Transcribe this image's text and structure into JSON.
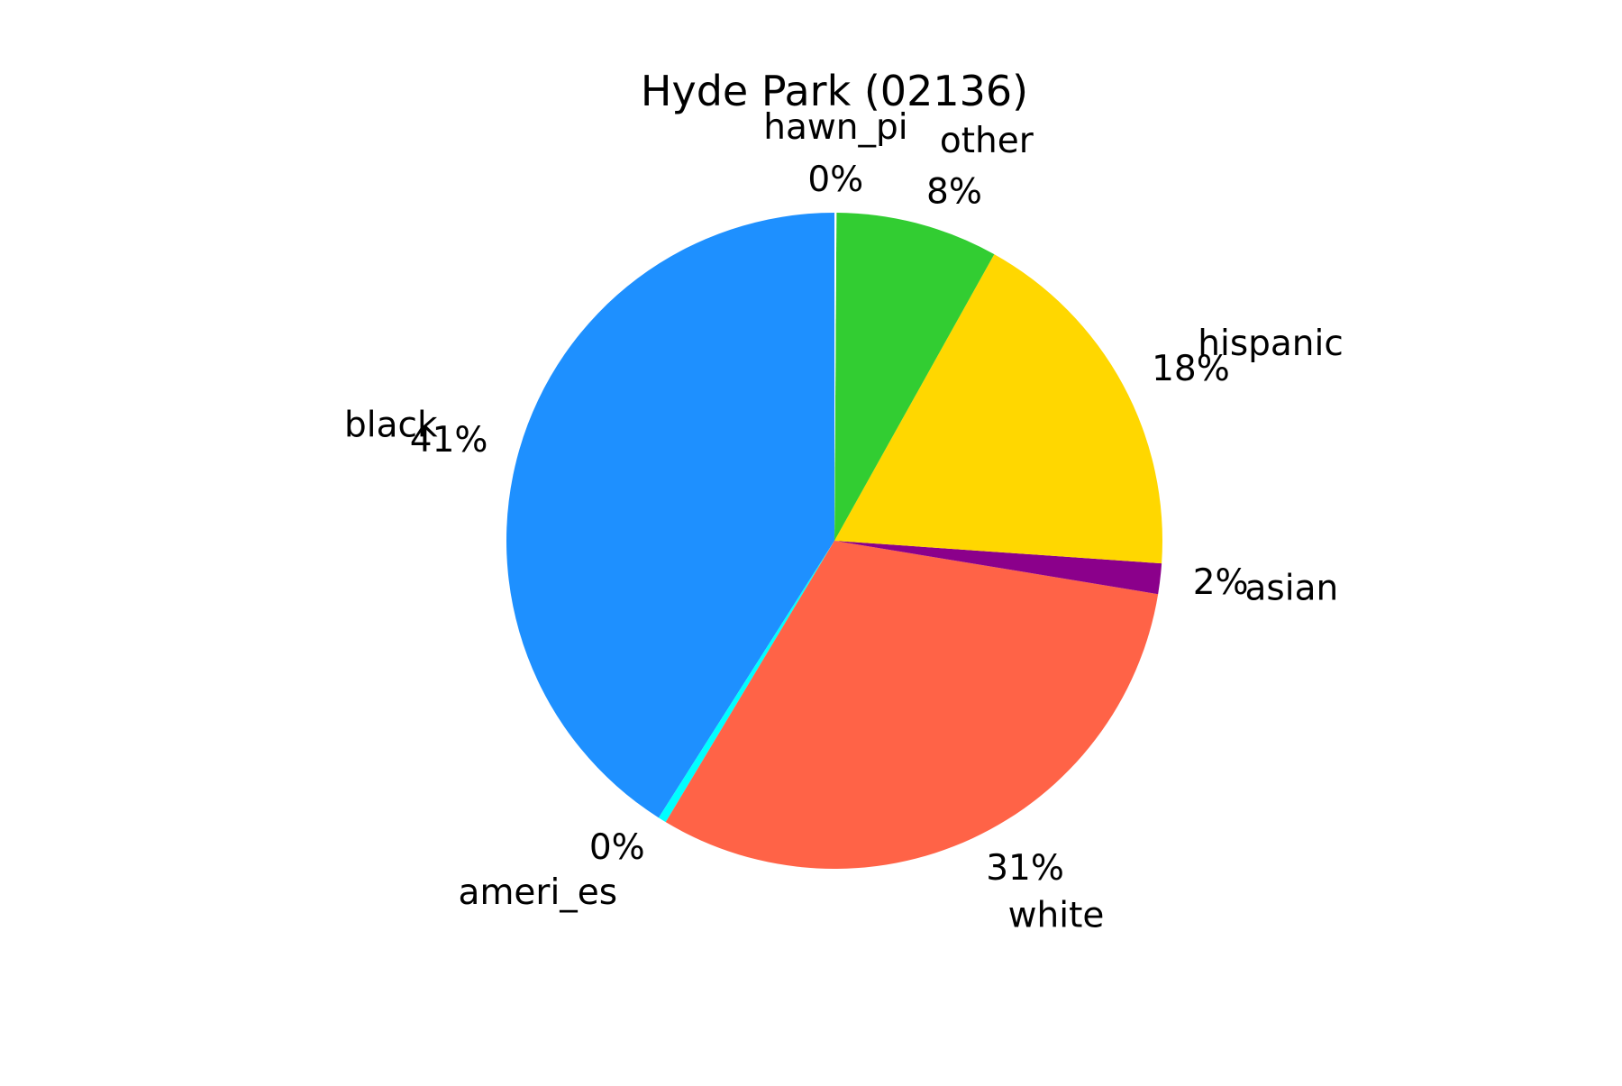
{
  "chart_data": {
    "type": "pie",
    "title": "Hyde Park (02136)",
    "start_angle_deg": 90,
    "direction": "counterclockwise",
    "slices": [
      {
        "label": "black",
        "value": 41.0,
        "pct_label": "41%",
        "color": "#1e90ff"
      },
      {
        "label": "ameri_es",
        "value": 0.4,
        "pct_label": "0%",
        "color": "#00ffff"
      },
      {
        "label": "white",
        "value": 31.0,
        "pct_label": "31%",
        "color": "#ff6347"
      },
      {
        "label": "asian",
        "value": 1.5,
        "pct_label": "2%",
        "color": "#8b008b"
      },
      {
        "label": "hispanic",
        "value": 18.0,
        "pct_label": "18%",
        "color": "#ffd700"
      },
      {
        "label": "other",
        "value": 8.0,
        "pct_label": "8%",
        "color": "#32cd32"
      },
      {
        "label": "hawn_pi",
        "value": 0.1,
        "pct_label": "0%",
        "color": "#ffffff"
      }
    ]
  }
}
